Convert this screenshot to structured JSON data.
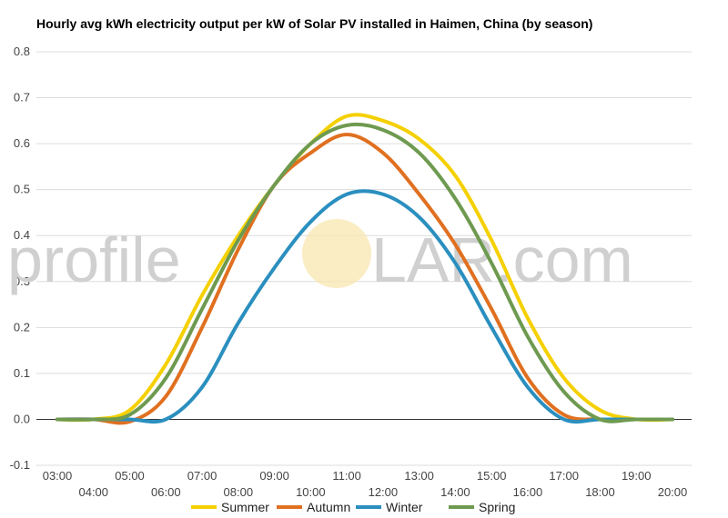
{
  "chart_data": {
    "type": "line",
    "title": "Hourly avg kWh electricity output per kW of Solar PV installed in Haimen, China (by season)",
    "xlabel": "",
    "ylabel": "",
    "ylim": [
      -0.1,
      0.8
    ],
    "yticks": [
      "-0.1",
      "0.0",
      "0.1",
      "0.2",
      "0.3",
      "0.4",
      "0.5",
      "0.6",
      "0.7",
      "0.8"
    ],
    "xticks_top": [
      "03:00",
      "05:00",
      "07:00",
      "09:00",
      "11:00",
      "13:00",
      "15:00",
      "17:00",
      "19:00"
    ],
    "xticks_bottom": [
      "04:00",
      "06:00",
      "08:00",
      "10:00",
      "12:00",
      "14:00",
      "16:00",
      "18:00",
      "20:00"
    ],
    "categories": [
      "03:00",
      "04:00",
      "05:00",
      "06:00",
      "07:00",
      "08:00",
      "09:00",
      "10:00",
      "11:00",
      "12:00",
      "13:00",
      "14:00",
      "15:00",
      "16:00",
      "17:00",
      "18:00",
      "19:00",
      "20:00"
    ],
    "legend_position": "bottom",
    "grid": true,
    "series": [
      {
        "name": "Summer",
        "color": "#F5D000",
        "values": [
          0.0,
          0.0,
          0.02,
          0.12,
          0.27,
          0.4,
          0.51,
          0.6,
          0.66,
          0.65,
          0.61,
          0.53,
          0.39,
          0.22,
          0.09,
          0.02,
          0.0,
          0.0
        ]
      },
      {
        "name": "Autumn",
        "color": "#E07020",
        "values": [
          0.0,
          0.0,
          -0.005,
          0.05,
          0.2,
          0.37,
          0.51,
          0.58,
          0.62,
          0.58,
          0.49,
          0.38,
          0.24,
          0.09,
          0.01,
          0.0,
          0.0,
          0.0
        ]
      },
      {
        "name": "Winter",
        "color": "#2A8FBF",
        "values": [
          0.0,
          0.0,
          0.0,
          0.0,
          0.07,
          0.21,
          0.33,
          0.43,
          0.49,
          0.49,
          0.44,
          0.34,
          0.2,
          0.07,
          0.0,
          0.0,
          0.0,
          0.0
        ]
      },
      {
        "name": "Spring",
        "color": "#6E9A50",
        "values": [
          0.0,
          0.0,
          0.01,
          0.09,
          0.24,
          0.39,
          0.51,
          0.6,
          0.64,
          0.63,
          0.58,
          0.48,
          0.34,
          0.18,
          0.06,
          0.0,
          0.0,
          0.0
        ]
      }
    ]
  },
  "watermark": {
    "left": "profile",
    "right": "LAR.com"
  }
}
